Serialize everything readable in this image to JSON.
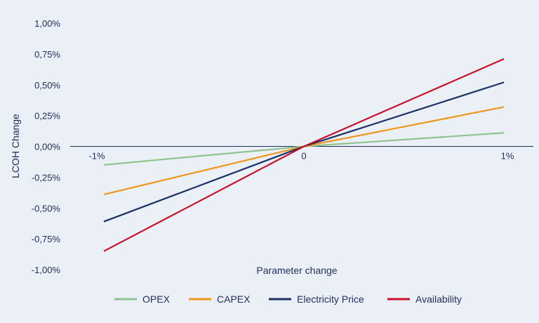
{
  "chart_data": {
    "type": "line",
    "x": [
      -1,
      0,
      1
    ],
    "x_tick_labels": [
      "-1%",
      "0",
      "1%"
    ],
    "xlabel": "Parameter change",
    "ylabel": "LCOH Change",
    "ylim": [
      -1.0,
      1.0
    ],
    "y_ticks": [
      1.0,
      0.75,
      0.5,
      0.25,
      0.0,
      -0.25,
      -0.5,
      -0.75,
      -1.0
    ],
    "y_tick_labels": [
      "1,00%",
      "0,75%",
      "0,50%",
      "0,25%",
      "0,00%",
      "-0,25%",
      "-0,50%",
      "-0,75%",
      "-1,00%"
    ],
    "grid": false,
    "legend_position": "bottom",
    "series": [
      {
        "name": "OPEX",
        "color": "#8fc490",
        "values": [
          -0.15,
          0.0,
          0.11
        ]
      },
      {
        "name": "CAPEX",
        "color": "#f0961e",
        "values": [
          -0.39,
          0.0,
          0.32
        ]
      },
      {
        "name": "Electricity Price",
        "color": "#1a2f66",
        "values": [
          -0.61,
          0.0,
          0.52
        ]
      },
      {
        "name": "Availability",
        "color": "#c8102e",
        "values": [
          -0.85,
          0.0,
          0.71
        ]
      }
    ]
  }
}
